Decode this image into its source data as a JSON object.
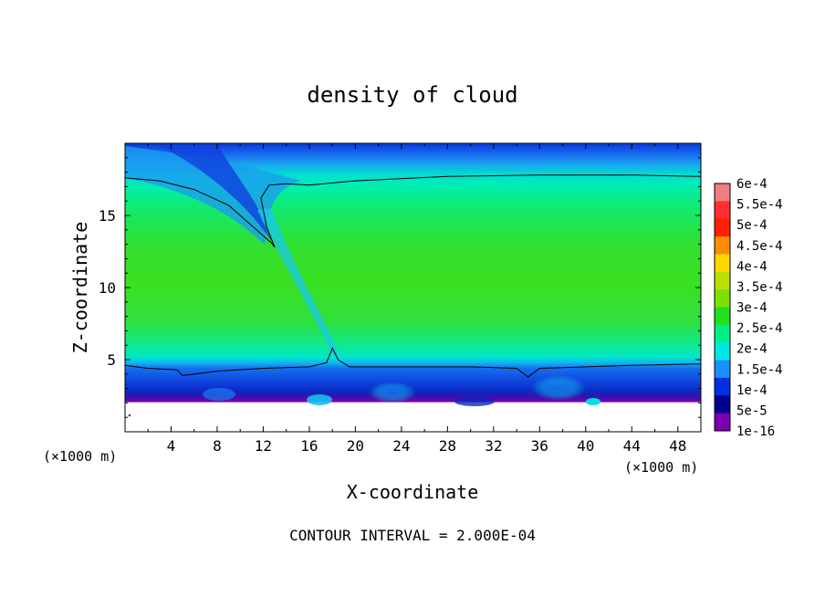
{
  "chart_data": {
    "type": "heatmap",
    "title": "density of cloud",
    "xlabel": "X-coordinate",
    "ylabel": "Z-coordinate",
    "x_unit_left": "(×1000 m)",
    "x_unit_right": "(×1000 m)",
    "footer": "CONTOUR INTERVAL = 2.000E-04",
    "xlim": [
      0,
      50
    ],
    "ylim": [
      0,
      20
    ],
    "x_ticks": [
      "4",
      "8",
      "12",
      "16",
      "20",
      "24",
      "28",
      "32",
      "36",
      "40",
      "44",
      "48"
    ],
    "y_ticks": [
      "5",
      "10",
      "15"
    ],
    "colorbar": {
      "labels": [
        "6e-4",
        "5.5e-4",
        "5e-4",
        "4.5e-4",
        "4e-4",
        "3.5e-4",
        "3e-4",
        "2.5e-4",
        "2e-4",
        "1.5e-4",
        "1e-4",
        "5e-5",
        "1e-16"
      ],
      "colors": [
        "#f08080",
        "#ff3030",
        "#ff2000",
        "#ff8c00",
        "#ffd700",
        "#b8e000",
        "#7ce000",
        "#20e020",
        "#00ee88",
        "#00e6e6",
        "#1890ff",
        "#0030e0",
        "#000090",
        "#7a00b0"
      ]
    },
    "contour_levels": [
      0,
      0.0002
    ],
    "contour_lines": [
      {
        "level": 0.0002,
        "x": [
          0,
          3,
          6,
          9,
          11,
          12.7,
          13,
          12.3,
          11.8,
          12.5,
          14,
          16,
          20,
          28,
          36,
          44,
          50
        ],
        "y": [
          17.6,
          17.4,
          16.8,
          15.7,
          14.3,
          13.1,
          12.8,
          14.2,
          16.2,
          17.1,
          17.2,
          17.1,
          17.4,
          17.7,
          17.8,
          17.8,
          17.7
        ]
      },
      {
        "level": 0.0002,
        "x": [
          0,
          2,
          4.5,
          5,
          8,
          12,
          16,
          17.5,
          18,
          18.5,
          19.5,
          22,
          26,
          30,
          34,
          35,
          36,
          40,
          44,
          50
        ],
        "y": [
          4.6,
          4.4,
          4.3,
          3.9,
          4.2,
          4.4,
          4.5,
          4.8,
          5.8,
          5.0,
          4.5,
          4.5,
          4.5,
          4.5,
          4.4,
          3.8,
          4.4,
          4.5,
          4.6,
          4.7
        ]
      }
    ],
    "field_summary": [
      {
        "region": "upper layer (z > 18)",
        "value_range": [
          5e-05,
          0.00015
        ]
      },
      {
        "region": "mid layer (z 5-17)",
        "value_range": [
          0.00025,
          0.0003
        ]
      },
      {
        "region": "lower layer (z 2-4.5)",
        "value_range": [
          5e-05,
          0.00015
        ]
      },
      {
        "region": "surface (z < 2)",
        "value_range": [
          1e-16,
          5e-05
        ]
      }
    ],
    "grid": false,
    "legend": "right colorbar"
  }
}
